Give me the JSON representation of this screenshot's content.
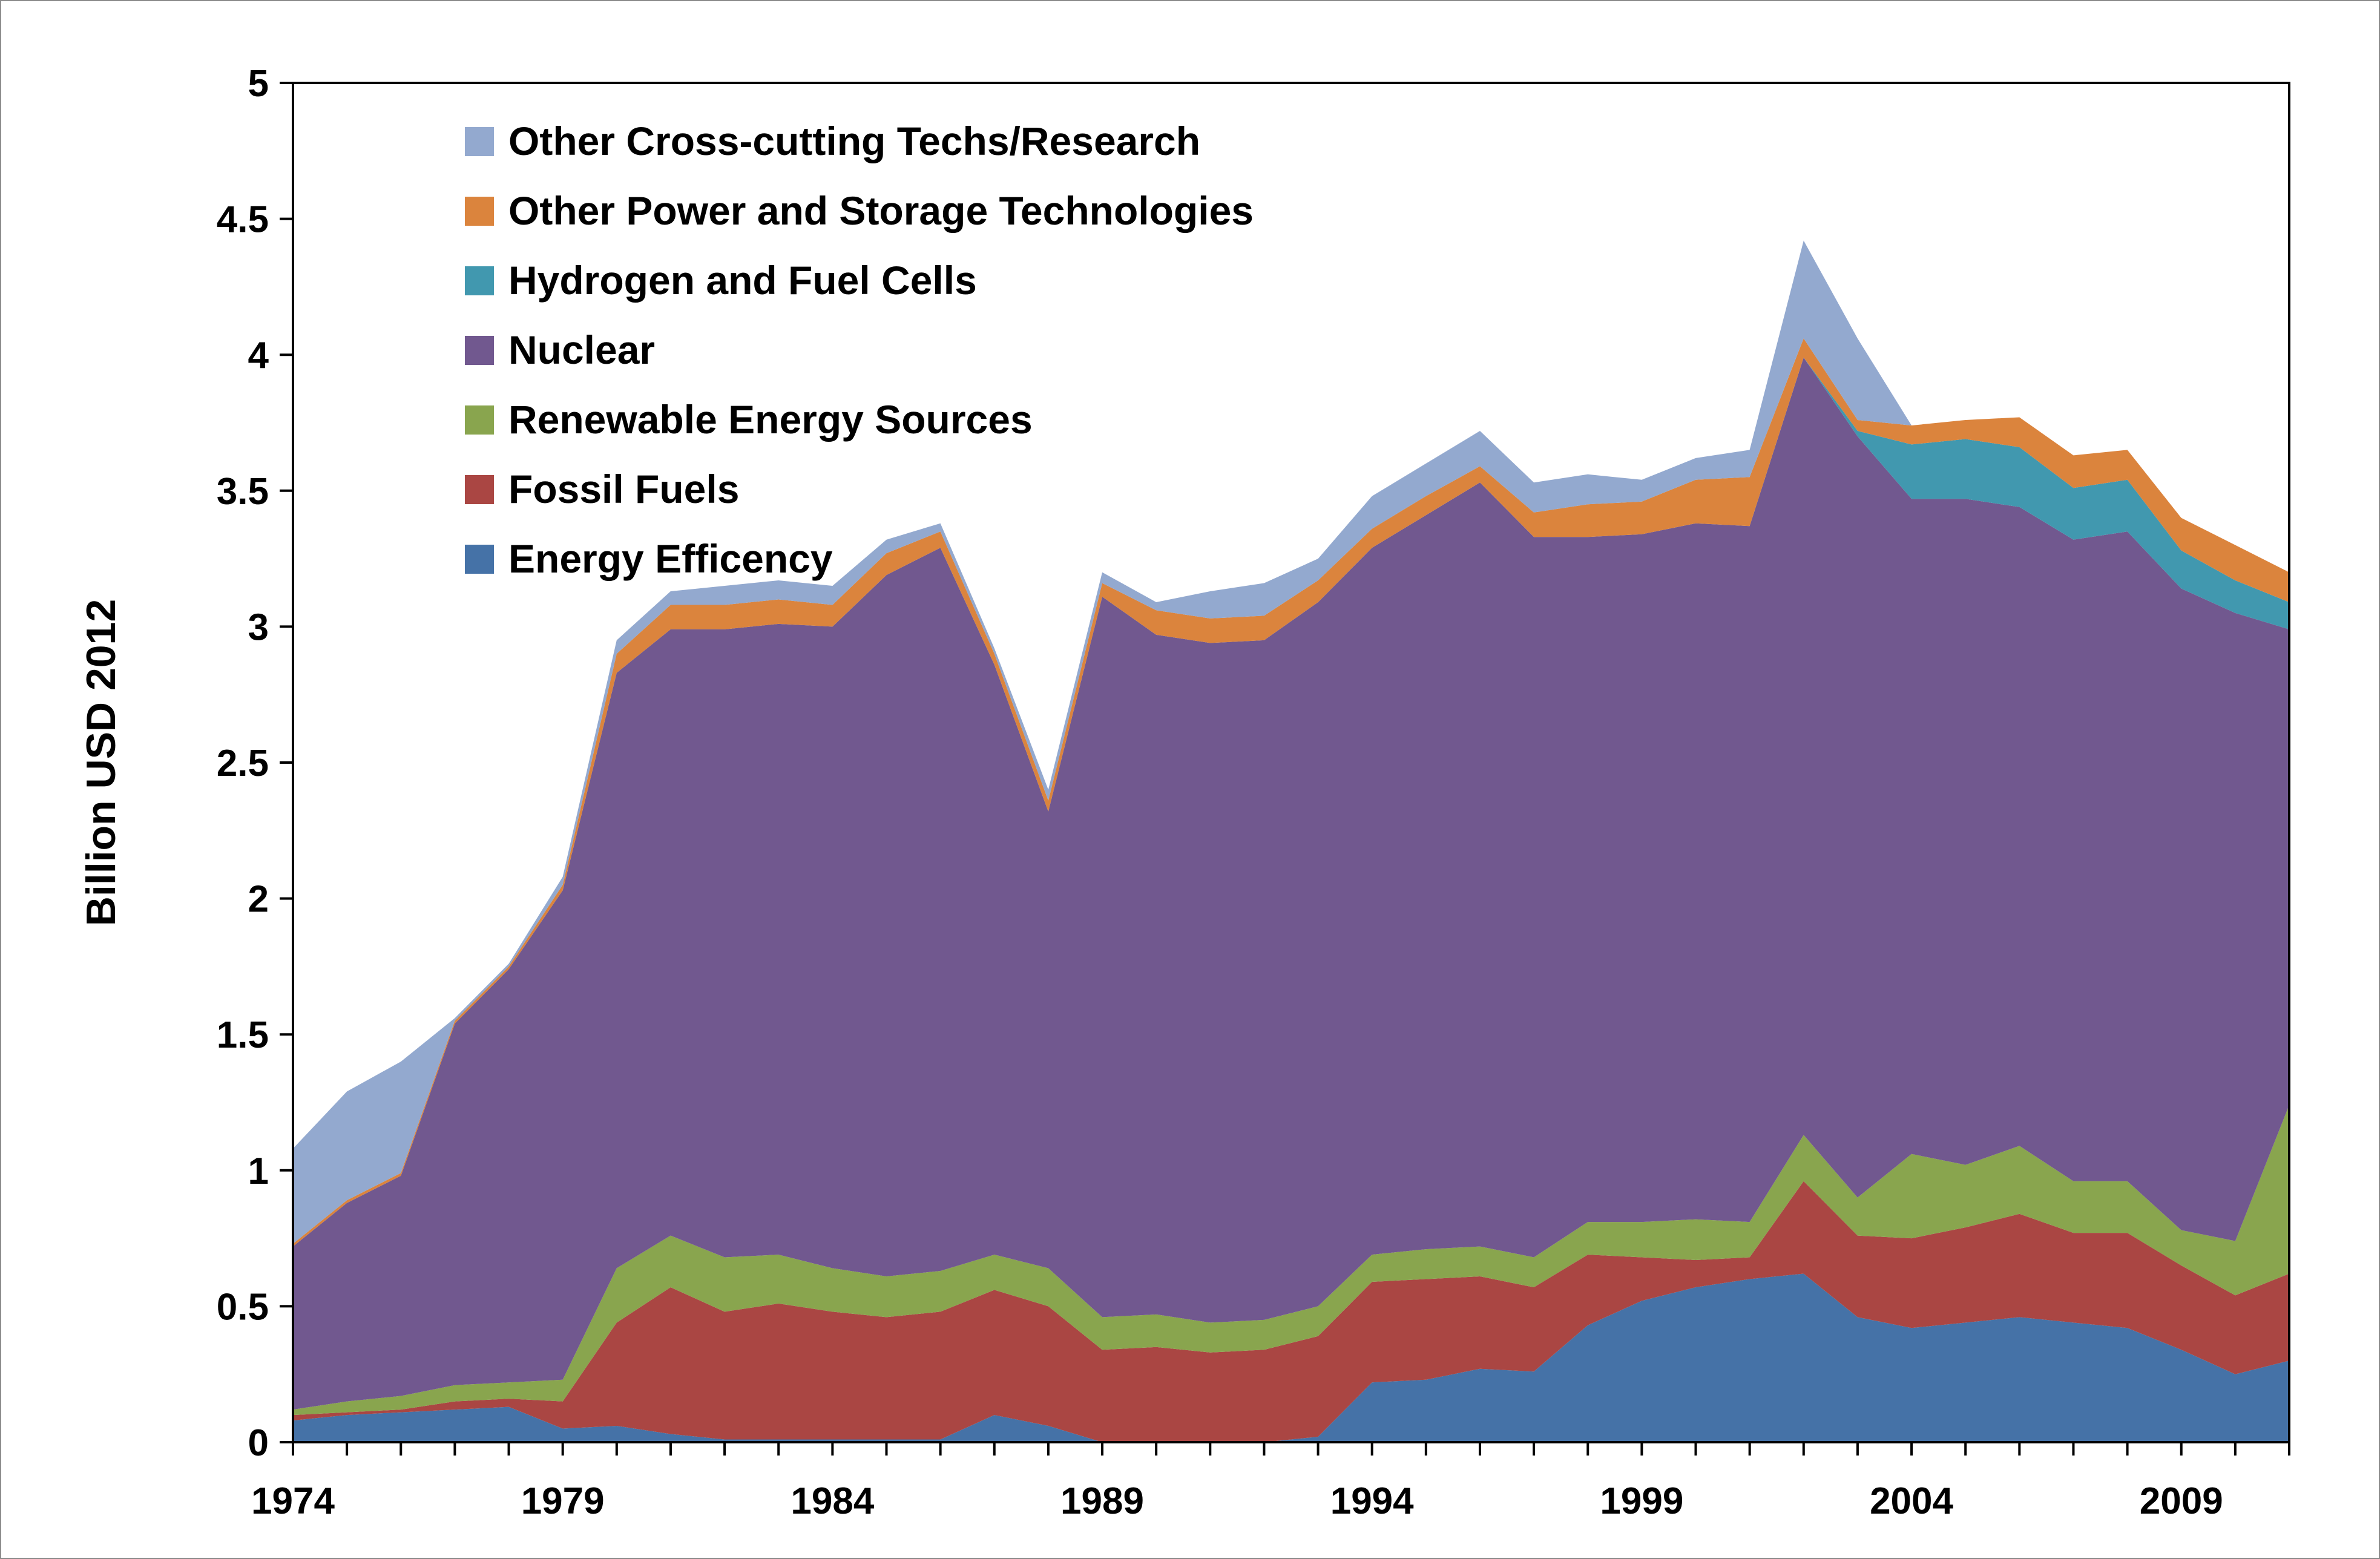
{
  "chart_data": {
    "type": "area",
    "stacked": true,
    "title": "",
    "xlabel": "",
    "ylabel": "Billion USD 2012",
    "ylim": [
      0,
      5
    ],
    "xlim": [
      1974,
      2011
    ],
    "yticks": [
      "0",
      "0.5",
      "1",
      "1.5",
      "2",
      "2.5",
      "3",
      "3.5",
      "4",
      "4.5",
      "5"
    ],
    "xticks": [
      "1974",
      "1979",
      "1984",
      "1989",
      "1994",
      "1999",
      "2004",
      "2009"
    ],
    "legend_position": "top-left",
    "x": [
      1974,
      1975,
      1976,
      1977,
      1978,
      1979,
      1980,
      1981,
      1982,
      1983,
      1984,
      1985,
      1986,
      1987,
      1988,
      1989,
      1990,
      1991,
      1992,
      1993,
      1994,
      1995,
      1996,
      1997,
      1998,
      1999,
      2000,
      2001,
      2002,
      2003,
      2004,
      2005,
      2006,
      2007,
      2008,
      2009,
      2010,
      2011
    ],
    "series": [
      {
        "name": "Energy Efficency",
        "color": "#4572A7",
        "values": [
          0.08,
          0.1,
          0.11,
          0.12,
          0.13,
          0.05,
          0.06,
          0.03,
          0.01,
          0.01,
          0.01,
          0.01,
          0.01,
          0.1,
          0.06,
          0.0,
          0.0,
          0.0,
          0.0,
          0.02,
          0.22,
          0.23,
          0.27,
          0.26,
          0.43,
          0.52,
          0.57,
          0.6,
          0.62,
          0.46,
          0.42,
          0.44,
          0.46,
          0.44,
          0.42,
          0.34,
          0.25,
          0.3
        ]
      },
      {
        "name": "Fossil Fuels",
        "color": "#AA4643",
        "values": [
          0.02,
          0.01,
          0.01,
          0.03,
          0.03,
          0.1,
          0.38,
          0.54,
          0.47,
          0.5,
          0.47,
          0.45,
          0.47,
          0.46,
          0.44,
          0.34,
          0.35,
          0.33,
          0.34,
          0.37,
          0.37,
          0.37,
          0.34,
          0.31,
          0.26,
          0.16,
          0.1,
          0.08,
          0.34,
          0.3,
          0.33,
          0.35,
          0.38,
          0.33,
          0.35,
          0.31,
          0.29,
          0.32
        ]
      },
      {
        "name": "Renewable Energy Sources",
        "color": "#89A54E",
        "values": [
          0.02,
          0.04,
          0.05,
          0.06,
          0.06,
          0.08,
          0.2,
          0.19,
          0.2,
          0.18,
          0.16,
          0.15,
          0.15,
          0.13,
          0.14,
          0.12,
          0.12,
          0.11,
          0.11,
          0.11,
          0.1,
          0.11,
          0.11,
          0.11,
          0.12,
          0.13,
          0.15,
          0.13,
          0.17,
          0.14,
          0.31,
          0.23,
          0.25,
          0.19,
          0.19,
          0.13,
          0.2,
          0.62
        ]
      },
      {
        "name": "Nuclear",
        "color": "#71588F",
        "values": [
          0.6,
          0.73,
          0.81,
          1.33,
          1.52,
          1.8,
          2.19,
          2.23,
          2.31,
          2.32,
          2.36,
          2.58,
          2.66,
          2.17,
          1.68,
          2.65,
          2.5,
          2.5,
          2.5,
          2.59,
          2.6,
          2.7,
          2.81,
          2.65,
          2.52,
          2.53,
          2.56,
          2.56,
          2.86,
          2.8,
          2.41,
          2.45,
          2.35,
          2.36,
          2.39,
          2.36,
          2.31,
          1.75
        ]
      },
      {
        "name": "Hydrogen and Fuel Cells",
        "color": "#4198AF",
        "values": [
          0,
          0,
          0,
          0,
          0,
          0,
          0,
          0,
          0,
          0,
          0,
          0,
          0,
          0,
          0,
          0,
          0,
          0,
          0,
          0,
          0,
          0,
          0,
          0,
          0,
          0,
          0,
          0,
          0,
          0.02,
          0.2,
          0.22,
          0.22,
          0.19,
          0.19,
          0.14,
          0.12,
          0.1
        ]
      },
      {
        "name": "Other Power and Storage Technologies",
        "color": "#DB843D",
        "values": [
          0.01,
          0.01,
          0.01,
          0.01,
          0.01,
          0.02,
          0.07,
          0.09,
          0.09,
          0.09,
          0.08,
          0.08,
          0.06,
          0.04,
          0.04,
          0.05,
          0.09,
          0.09,
          0.09,
          0.08,
          0.07,
          0.07,
          0.06,
          0.09,
          0.12,
          0.12,
          0.16,
          0.18,
          0.07,
          0.04,
          0.07,
          0.07,
          0.11,
          0.12,
          0.11,
          0.12,
          0.13,
          0.11
        ]
      },
      {
        "name": "Other Cross-cutting Techs/Research",
        "color": "#93A9CF",
        "values": [
          0.35,
          0.4,
          0.41,
          0.01,
          0.01,
          0.03,
          0.05,
          0.05,
          0.07,
          0.07,
          0.07,
          0.05,
          0.03,
          0.02,
          0.04,
          0.04,
          0.03,
          0.1,
          0.12,
          0.08,
          0.12,
          0.12,
          0.13,
          0.11,
          0.11,
          0.08,
          0.08,
          0.1,
          0.36,
          0.3,
          0,
          0,
          0,
          0,
          0,
          0,
          0,
          0
        ]
      }
    ]
  }
}
